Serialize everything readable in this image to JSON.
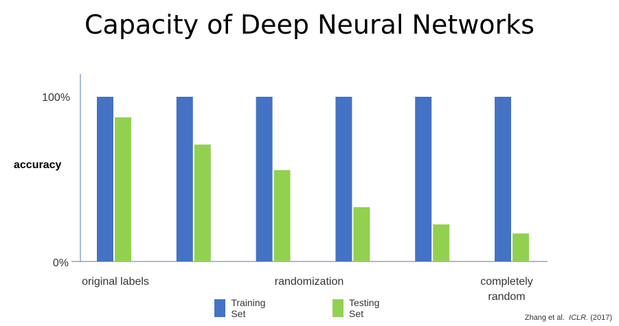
{
  "title": "Capacity of Deep Neural Networks",
  "citation": {
    "authors": "Zhang et al.",
    "venue": "ICLR.",
    "year": "(2017)"
  },
  "colors": {
    "training": "#4472C4",
    "testing": "#92D050",
    "axis": "#8EA4D2"
  },
  "chart_data": {
    "type": "bar",
    "title": "Capacity of Deep Neural Networks",
    "ylabel": "accuracy",
    "xlabel": "randomization",
    "ylim": [
      0,
      100
    ],
    "yticks": [
      "0%",
      "100%"
    ],
    "category_labels": [
      "original labels",
      "completely random"
    ],
    "groups": 6,
    "grid": false,
    "legend_position": "bottom",
    "series": [
      {
        "name": "Training Set",
        "values": [
          100,
          100,
          100,
          100,
          100,
          100
        ]
      },
      {
        "name": "Testing Set",
        "values": [
          87.5,
          71,
          55.5,
          33,
          22.5,
          17
        ]
      }
    ]
  }
}
